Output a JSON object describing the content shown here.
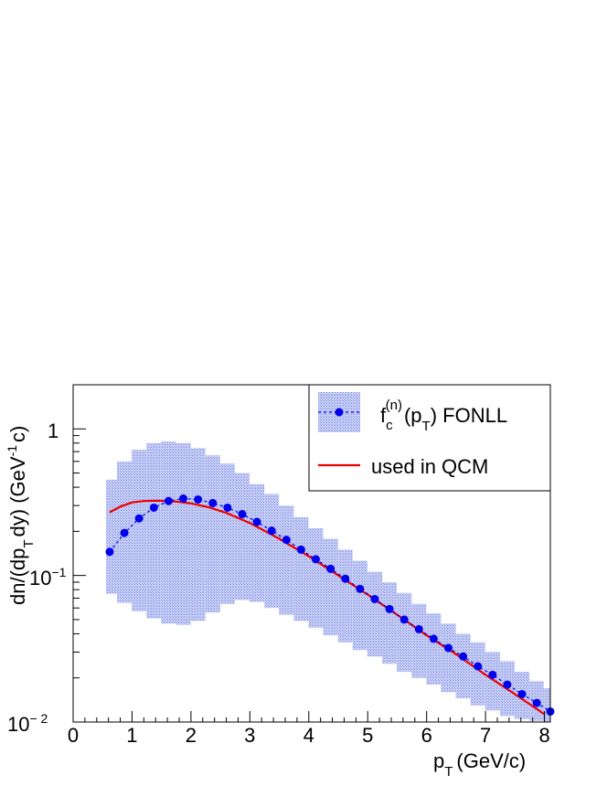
{
  "chart_data": {
    "type": "line",
    "xlabel": "p",
    "xlabel_sub": "T",
    "xlabel_unit": "(GeV/c)",
    "ylabel": "dn/(dp",
    "ylabel_sub": "T",
    "ylabel_mid": "dy) (GeV",
    "ylabel_sup": "-1",
    "ylabel_end": "c)",
    "xlim": [
      0,
      8.1
    ],
    "ylim": [
      0.01,
      2.0
    ],
    "yscale": "log",
    "grid": false,
    "legend_position": "top-right",
    "x_ticks": [
      "0",
      "1",
      "2",
      "3",
      "4",
      "5",
      "6",
      "7",
      "8"
    ],
    "y_tick_one": "1",
    "y_tick_base": "10",
    "y_tick_exp_minus1": "−1",
    "y_tick_exp_minus2": "− 2",
    "series": [
      {
        "name_main": "f",
        "name_sub": "c",
        "name_sup": "(n)",
        "name_paren_open": "(p",
        "name_paren_sub": "T",
        "name_tail": ") FONLL",
        "color": "#0000ee",
        "band_color": "#aab4f0",
        "x": [
          0.62,
          0.87,
          1.12,
          1.37,
          1.62,
          1.87,
          2.12,
          2.37,
          2.62,
          2.87,
          3.12,
          3.37,
          3.62,
          3.87,
          4.12,
          4.37,
          4.62,
          4.87,
          5.12,
          5.37,
          5.62,
          5.87,
          6.12,
          6.37,
          6.62,
          6.87,
          7.12,
          7.37,
          7.62,
          7.87,
          8.1
        ],
        "y": [
          0.145,
          0.195,
          0.245,
          0.29,
          0.322,
          0.335,
          0.33,
          0.312,
          0.29,
          0.262,
          0.232,
          0.202,
          0.175,
          0.15,
          0.129,
          0.111,
          0.095,
          0.081,
          0.069,
          0.059,
          0.05,
          0.043,
          0.037,
          0.032,
          0.028,
          0.024,
          0.021,
          0.018,
          0.0155,
          0.0135,
          0.0118
        ],
        "band_low": [
          0.075,
          0.065,
          0.057,
          0.051,
          0.047,
          0.046,
          0.049,
          0.056,
          0.064,
          0.068,
          0.066,
          0.06,
          0.054,
          0.049,
          0.044,
          0.039,
          0.035,
          0.031,
          0.028,
          0.025,
          0.022,
          0.02,
          0.018,
          0.016,
          0.0145,
          0.013,
          0.012,
          0.011,
          0.0105,
          0.0102,
          0.0101
        ],
        "band_high": [
          0.45,
          0.6,
          0.72,
          0.8,
          0.82,
          0.8,
          0.74,
          0.66,
          0.58,
          0.5,
          0.42,
          0.36,
          0.3,
          0.25,
          0.21,
          0.178,
          0.15,
          0.126,
          0.106,
          0.09,
          0.076,
          0.064,
          0.055,
          0.047,
          0.04,
          0.035,
          0.03,
          0.026,
          0.022,
          0.019,
          0.017
        ]
      },
      {
        "name": "used in QCM",
        "color": "#ee0000",
        "x": [
          0.62,
          0.8,
          1.0,
          1.2,
          1.4,
          1.6,
          1.8,
          2.0,
          2.3,
          2.6,
          3.0,
          3.5,
          4.0,
          4.5,
          5.0,
          5.5,
          6.0,
          6.5,
          7.0,
          7.5,
          8.0
        ],
        "y": [
          0.27,
          0.295,
          0.315,
          0.322,
          0.324,
          0.322,
          0.318,
          0.31,
          0.292,
          0.267,
          0.228,
          0.178,
          0.135,
          0.1,
          0.074,
          0.054,
          0.039,
          0.029,
          0.021,
          0.0155,
          0.0113
        ]
      }
    ]
  }
}
